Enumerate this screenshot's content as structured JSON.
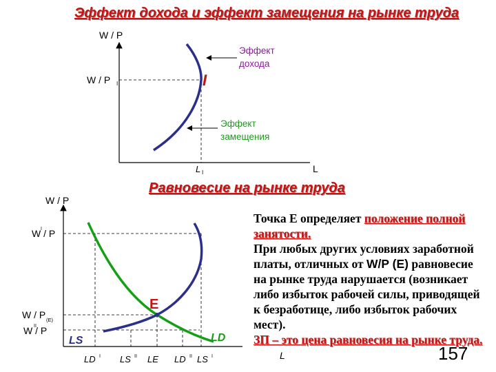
{
  "top_title": "Эффект дохода и эффект замещения на рынке труда",
  "bottom_title": "Равновесие на рынке труда",
  "top_chart": {
    "y_axis": "W / P",
    "x_axis": "L",
    "y_tick": "W / P",
    "y_tick_sub": "I",
    "x_tick": "L",
    "x_tick_sub": "I",
    "point": "I",
    "income_effect": [
      "Эффект",
      "дохода"
    ],
    "substitution_effect": [
      "Эффект",
      "замещения"
    ]
  },
  "bottom_chart": {
    "y_axis": "W / P",
    "x_axis": "L",
    "wp_high": "W / P",
    "wp_high_sup": "I",
    "wp_eq": "W / P",
    "wp_eq_sub": "(E)",
    "wp_low": "W / P",
    "wp_low_sup": "II",
    "point": "E",
    "ls_label": "LS",
    "ld_label": "LD",
    "x_ticks": [
      {
        "main": "LD",
        "sup": "I"
      },
      {
        "main": "LS",
        "sup": "II"
      },
      {
        "main": "LE",
        "sup": ""
      },
      {
        "main": "LD",
        "sup": "II"
      },
      {
        "main": "LS",
        "sup": "I"
      }
    ]
  },
  "paragraph": {
    "p1_text": "Точка Е определяет ",
    "p1_red": "положение полной занятости.",
    "p2_a": "При любых других условиях заработной платы, отличных от ",
    "p2_wp": "W/P (E)",
    "p2_b": " равновесие на рынке труда нарушается (возникает либо избыток рабочей силы, приводящей к безработице, либо избыток рабочих мест).",
    "p3_red": "ЗП – это цена равновесия на рынке труда."
  },
  "page_number": "157",
  "colors": {
    "title_red": "#cc1111",
    "curve_navy": "#2b2f8c",
    "curve_green": "#14a014",
    "purple": "#8b1a9a",
    "green_text": "#1d9a1d"
  }
}
